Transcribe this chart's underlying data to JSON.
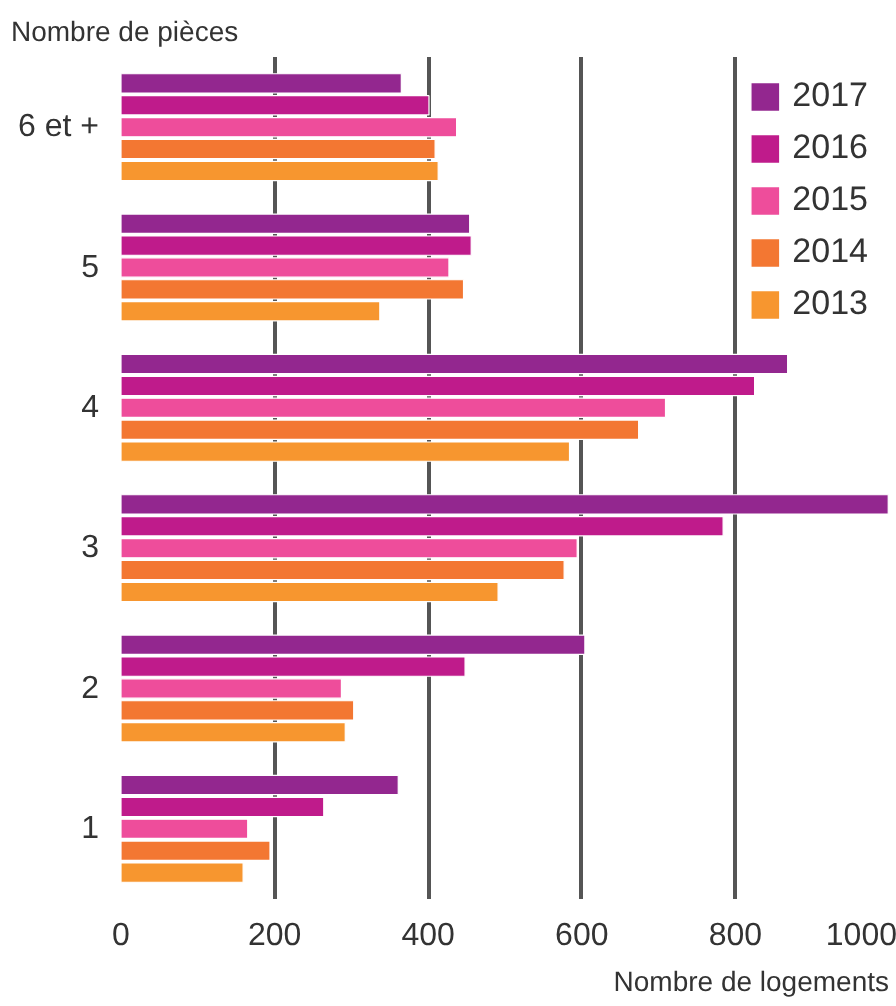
{
  "chart_data": {
    "type": "bar",
    "orientation": "horizontal",
    "ylabel": "Nombre de pièces",
    "xlabel": "Nombre de logements",
    "categories": [
      "6 et +",
      "5",
      "4",
      "3",
      "2",
      "1"
    ],
    "series": [
      {
        "name": "2017",
        "color": "#93278f",
        "values": [
          365,
          454,
          868,
          999,
          604,
          361
        ]
      },
      {
        "name": "2016",
        "color": "#bf1b8b",
        "values": [
          401,
          456,
          825,
          784,
          448,
          264
        ]
      },
      {
        "name": "2015",
        "color": "#ee4d9b",
        "values": [
          437,
          427,
          709,
          594,
          287,
          165
        ]
      },
      {
        "name": "2014",
        "color": "#f37732",
        "values": [
          409,
          446,
          674,
          577,
          303,
          194
        ]
      },
      {
        "name": "2013",
        "color": "#f7962f",
        "values": [
          413,
          337,
          584,
          491,
          292,
          159
        ]
      }
    ],
    "xlim": [
      0,
      1000
    ],
    "xticks": [
      0,
      200,
      400,
      600,
      800,
      1000
    ],
    "grid": "x",
    "legend": "top right"
  }
}
